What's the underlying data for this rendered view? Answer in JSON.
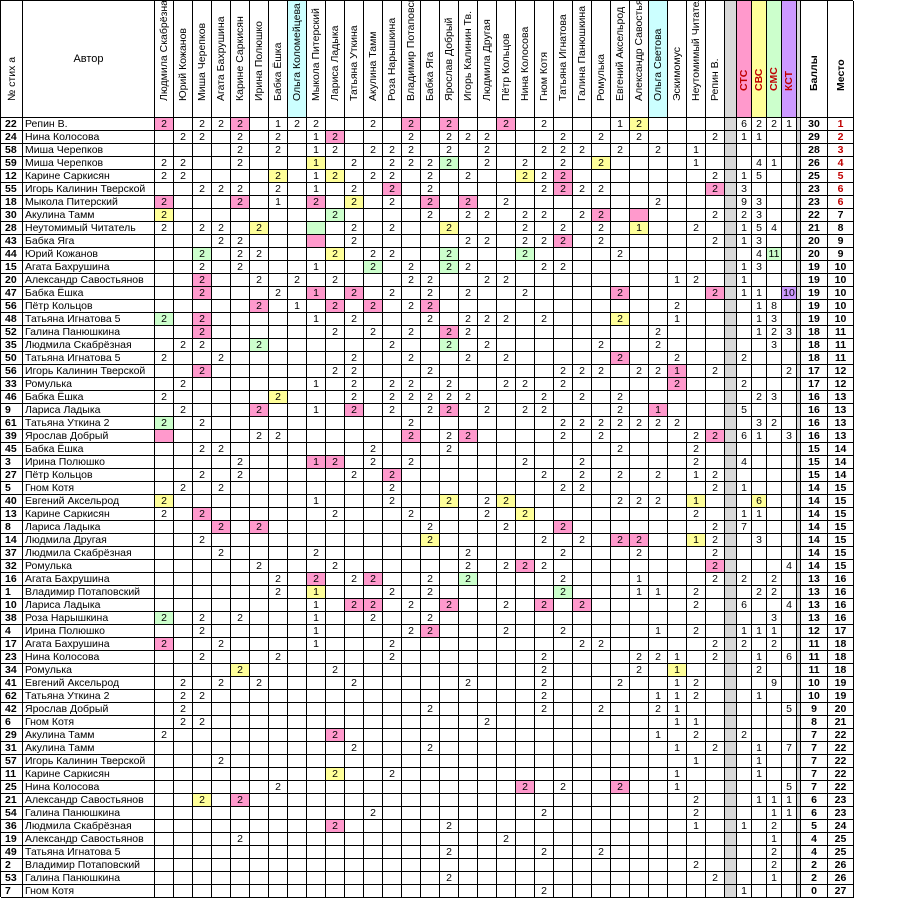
{
  "headers": {
    "num": "№ стих а",
    "author": "Автор",
    "voters": [
      "Людмила Скабрёзная",
      "Юрий Кожанов",
      "Миша Черепков",
      "Агата Бахрушина",
      "Карине Саркисян",
      "Ирина Полюшко",
      "Бабка Ёшка",
      "Ольга Коломейцева В",
      "Мыкола Питерский",
      "Лариса Ладыка",
      "Татьяна Уткина",
      "Акулина Тамм",
      "Роза Нарышкина",
      "Владимир Потаповски",
      "Бабка Яга",
      "Ярослав Добрый",
      "Игорь Калинин Тв.",
      "Людмила Другая",
      "Пётр Кольцов",
      "Нина Колосова",
      "Гном Котя",
      "Татьяна Игнатова",
      "Галина Панюшкина",
      "Ромулька",
      "Евгений Аксельрод",
      "Александр Савостьяно",
      "Ольга Светова",
      "Эскимомус",
      "Неутомимый Читатель",
      "Репин В."
    ],
    "stats": [
      "СТС",
      "СВС",
      "СМС",
      "КСТ"
    ],
    "score": "Баллы",
    "place": "Место"
  },
  "colors": {
    "pink": "#ff99cc",
    "yellow": "#ffff99",
    "green": "#ccffcc",
    "purple": "#cc99ff",
    "cyan": "#ccffff",
    "stsHead": "#ff99cc",
    "svsHead": "#ffff99",
    "smsHead": "#ccffcc",
    "kstHead": "#cc99ff",
    "sep": "#d9d9d9"
  },
  "rows": [
    {
      "n": "22",
      "a": "Репин В.",
      "b": "30",
      "p": "1"
    },
    {
      "n": "24",
      "a": "Нина Колосова",
      "b": "29",
      "p": "2"
    },
    {
      "n": "58",
      "a": "Миша Черепков",
      "b": "28",
      "p": "3"
    },
    {
      "n": "59",
      "a": "Миша Черепков",
      "b": "26",
      "p": "4"
    },
    {
      "n": "12",
      "a": "Карине Саркисян",
      "b": "25",
      "p": "5"
    },
    {
      "n": "55",
      "a": "Игорь Калинин Тверской",
      "b": "23",
      "p": "6"
    },
    {
      "n": "18",
      "a": "Мыкола Питерский",
      "b": "23",
      "p": "6"
    },
    {
      "n": "30",
      "a": "Акулина Тамм",
      "b": "22",
      "p": "7"
    },
    {
      "n": "28",
      "a": "Неутомимый Читатель",
      "b": "21",
      "p": "8"
    },
    {
      "n": "43",
      "a": "Бабка Яга",
      "b": "20",
      "p": "9"
    },
    {
      "n": "44",
      "a": "Юрий Кожанов",
      "b": "20",
      "p": "9"
    },
    {
      "n": "15",
      "a": "Агата Бахрушина",
      "b": "19",
      "p": "10"
    },
    {
      "n": "20",
      "a": "Александр Савостьянов",
      "b": "19",
      "p": "10"
    },
    {
      "n": "47",
      "a": "Бабка Ёшка",
      "b": "19",
      "p": "10"
    },
    {
      "n": "56",
      "a": "Пётр Кольцов",
      "b": "19",
      "p": "10"
    },
    {
      "n": "48",
      "a": "Татьяна Игнатова 5",
      "b": "19",
      "p": "10"
    },
    {
      "n": "52",
      "a": "Галина Панюшкина",
      "b": "18",
      "p": "11"
    },
    {
      "n": "35",
      "a": "Людмила Скабрёзная",
      "b": "18",
      "p": "11"
    },
    {
      "n": "50",
      "a": "Татьяна Игнатова 5",
      "b": "18",
      "p": "11"
    },
    {
      "n": "56",
      "a": "Игорь Калинин Тверской",
      "b": "17",
      "p": "12"
    },
    {
      "n": "33",
      "a": "Ромулька",
      "b": "17",
      "p": "12"
    },
    {
      "n": "46",
      "a": "Бабка Ёшка",
      "b": "16",
      "p": "13"
    },
    {
      "n": "9",
      "a": "Лариса Ладыка",
      "b": "16",
      "p": "13"
    },
    {
      "n": "61",
      "a": "Татьяна Уткина 2",
      "b": "16",
      "p": "13"
    },
    {
      "n": "39",
      "a": "Ярослав Добрый",
      "b": "16",
      "p": "13"
    },
    {
      "n": "45",
      "a": "Бабка Ёшка",
      "b": "15",
      "p": "14"
    },
    {
      "n": "3",
      "a": "Ирина Полюшко",
      "b": "15",
      "p": "14"
    },
    {
      "n": "27",
      "a": "Пётр Кольцов",
      "b": "15",
      "p": "14"
    },
    {
      "n": "5",
      "a": "Гном Котя",
      "b": "14",
      "p": "15"
    },
    {
      "n": "40",
      "a": "Евгений Аксельрод",
      "b": "14",
      "p": "15"
    },
    {
      "n": "13",
      "a": "Карине Саркисян",
      "b": "14",
      "p": "15"
    },
    {
      "n": "8",
      "a": "Лариса Ладыка",
      "b": "14",
      "p": "15"
    },
    {
      "n": "14",
      "a": "Людмила Другая",
      "b": "14",
      "p": "15"
    },
    {
      "n": "37",
      "a": "Людмила Скабрёзная",
      "b": "14",
      "p": "15"
    },
    {
      "n": "32",
      "a": "Ромулька",
      "b": "14",
      "p": "15"
    },
    {
      "n": "16",
      "a": "Агата Бахрушина",
      "b": "13",
      "p": "16"
    },
    {
      "n": "1",
      "a": "Владимир Потаповский",
      "b": "13",
      "p": "16"
    },
    {
      "n": "10",
      "a": "Лариса Ладыка",
      "b": "13",
      "p": "16"
    },
    {
      "n": "38",
      "a": "Роза Нарышкина",
      "b": "13",
      "p": "16"
    },
    {
      "n": "4",
      "a": "Ирина Полюшко",
      "b": "12",
      "p": "17"
    },
    {
      "n": "17",
      "a": "Агата Бахрушина",
      "b": "11",
      "p": "18"
    },
    {
      "n": "23",
      "a": "Нина Колосова",
      "b": "11",
      "p": "18"
    },
    {
      "n": "34",
      "a": "Ромулька",
      "b": "11",
      "p": "18"
    },
    {
      "n": "41",
      "a": "Евгений Аксельрод",
      "b": "10",
      "p": "19"
    },
    {
      "n": "62",
      "a": "Татьяна Уткина 2",
      "b": "10",
      "p": "19"
    },
    {
      "n": "42",
      "a": "Ярослав Добрый",
      "b": "9",
      "p": "20"
    },
    {
      "n": "6",
      "a": "Гном Котя",
      "b": "8",
      "p": "21"
    },
    {
      "n": "29",
      "a": "Акулина Тамм",
      "b": "7",
      "p": "22"
    },
    {
      "n": "31",
      "a": "Акулина Тамм",
      "b": "7",
      "p": "22"
    },
    {
      "n": "57",
      "a": "Игорь Калинин Тверской",
      "b": "7",
      "p": "22"
    },
    {
      "n": "11",
      "a": "Карине Саркисян",
      "b": "7",
      "p": "22"
    },
    {
      "n": "25",
      "a": "Нина Колосова",
      "b": "7",
      "p": "22"
    },
    {
      "n": "21",
      "a": "Александр Савостьянов",
      "b": "6",
      "p": "23"
    },
    {
      "n": "54",
      "a": "Галина Панюшкина",
      "b": "6",
      "p": "23"
    },
    {
      "n": "36",
      "a": "Людмила Скабрёзная",
      "b": "5",
      "p": "24"
    },
    {
      "n": "19",
      "a": "Александр Савостьянов",
      "b": "4",
      "p": "25"
    },
    {
      "n": "49",
      "a": "Татьяна Игнатова 5",
      "b": "4",
      "p": "25"
    },
    {
      "n": "2",
      "a": "Владимир Потаповский",
      "b": "2",
      "p": "26"
    },
    {
      "n": "53",
      "a": "Галина Панюшкина",
      "b": "2",
      "p": "26"
    },
    {
      "n": "7",
      "a": "Гном Котя",
      "b": "0",
      "p": "27"
    }
  ],
  "votes": [
    "2p2 - 2 2 2p - 1 2 2 - - 2 - 2p2 - 2p - - 2p - 2 - - - 1 2y",
    "- 2 2 - 2 - 2 - 1 2p2 - - - 2 - 2 2 2 - - - 2 - 2 - 2 - - - 2",
    "- - - - 2 - 2 - 1 2 - 2 2 2 - 2 - 2 - - 2 2 2 - 2 - 2 - 1 -",
    "2 2 - - 2 - - - 1y - 2 - 2 2 2 2g - 2 - 2 - 2 - 2y - - - - 1 -",
    "2 2 - - - - 2y - 1 2y - 2 2 - 2 - 2 - - 2y 2 2p - - - - - - - 2",
    "- - 2 2 2 - 2 - 1 - 2 - 2p - 2 - - - - - 2 2p 2 2 - - - - - 2p",
    "2p2 - - - 2p2p - 1 - 2p - 2y2 - 2 - 2p2 - 2p - 2 - - - - - - - 2",
    "2y - - - - - - - - 2g - - - - 2 - 2 2 - 2 2 - 2 2p - p - - - 2",
    "2 - 2 2 - 2y - - g - 2 - 2 - - 2y2 - - - 2 - 2 - 2 - 1y - - 2",
    "- - - 2 2 - - - p - 2 - - - - - 2 2 - 2 2 2p - 2 - - - - - 2",
    "- - 2g - 2 2 - - - 2y - 2 2 - - 2g - - - 2g2 - - - - 2 - - - -",
    "- - 2 - 2 - - - 1 - - 2g - 2 - 2g2 2 - - - 2 2 - - - - - - -",
    "- - 2p - - 2 - 2 - 2 - - - 2 2 - - 2 2 - - - - - - - - 1 2 -",
    "- - 2p - - - 2 - 1p - 2p - 2 - 2 - 2 - - 2 - - - - 2p - - - - 2p",
    "- - - - - 2p2 - 1 - 2p - 2p2 - 2 2p - - - - - - - - - - - - 2",
    "2g - 2p - - - - - 1 - 2 - - - 2 - 2 2 2 - 2 - - - 2y - - 1 - -",
    "- - 2p - - - - - - 2 - 2 - 2 - 2p2 2 - - - - - - - - - 2 - - -",
    "- 2 2 - - 2g2 - - - - - - 2 - - 2g - 2 - - - - - 2 - - 2 - - -",
    "2 - - 2 - - - - - - 2 - - 2 - - 2 - 2 - - - - - 2p2p - - 2 -",
    "- - 2p - - - - - - 2 2 - - - 2 - - - - - - 2 2 2 - 2 2 1p - 2",
    "- 2 - - - - - - 1 - 2 - 2 2 - 2 - - 2 2 - 2 - - - - - 2p - -",
    "2 - - - - - 2y - - - 2 - 2 2 2 2 2 - - - 2 - 2 - 2 - - - - -",
    "- 2 - - - 2p - - 1 - 2p - 2 - 2 2p - 2 - 2 2 - - - 2 - 1p - -",
    "2g - 2 - - - - - - - - - - 2 - - - - - - - 2 2 2 2 2 2 2 - -",
    "p - - - - 2 2 - - - - - - 2p - 2 2p - - - - 2 - 2 - - - - 2 2p",
    "- - 2 2 - - - - - - - 2 - - - 2 - - - - - - - - 2 - - - 2 -",
    "- - - - 2 - - - 1p2 2p - 2 - 2 - - - - - 2 - - 2 - - - - - 2",
    "- - 2 - 2 - - - - - 2 - 2p - - - - - - - 2 - 2 - 2 - 2 - 1 2",
    "- 2 - 2 - - - - - - - - 2 - - - - - - - - 2 2 - - - - - - 2",
    "2y - - - - - - - 1 - - - 2 - - 2y - 2 2y - - - - - 2 2 2 - 1y2 -",
    "2 - 2p - - - - - - 2 - - - 2 - - - 2 - 2y - - - - - - - - 2 -",
    "- - - 2p - 2p2 - - - - - - - - 2 - - - 2 - - 2p - - - - - - - 2",
    "- - 2 - - - - - - - - - - - 2y - - - - - 2 - 2 - 2p 2p - - 1y 2",
    "- - - 2 - - - - 2 - - - - - - - 2 - - - - 2 - - - 2 - - - 2",
    "- - - - - 2 - - - 2 - - - - - - 2 - 2 2p 2 - - - - - - - - 2p",
    "- - - - - - 2 - 2p - 2 2p - - 2 - 2g - - - - 2 - - - 1 - - - 2",
    "- - - - - - 2 - 1y - - - 2 - 2 - - - - - - 2g - - - 1 1 - 2 -",
    "- - - - - - - - 1 - 2p 2p - 2 - 2p - - 2 - 2p - 2p - - - - - 2 -",
    "2g - 2 - 2 - - - 1 - - 2 - - 2 - - - - - - - - - - - - - - -",
    "- - 2 - - - - - 1 - - - - 2 2p - - - 2 - - 2 - - - - 1 - 2 -",
    "2p - - 2 - - - - 1 - - - 2 - - - - - - - - - 2 2 - - - - - 2 -",
    "- - 2 - - - 2 - - - - - 2 - - - - - - - 2 - - - - 2 2 1 - 2 -",
    "- - - - 2y - - - - 2 - - - - - - - - - - 2 - - - - 2 - 1y2 - -",
    "- 2 - 2 - 2 - - - - 2 - - - - - 2 - - - 2 - - - 2 - - 1 2 - -",
    "- 2 2 - - - - - - - - - - - - - - - - - 2 - - - - - 1 1 2 -",
    "- 2 - - - - - - - - - - - - 2 - - - - - 2 - - 2 - - 2 1 - -",
    "- 2 2 - - - - - - - - - - - - - - 2 - - - - - - - - - 1 1 - -",
    "2 - - - - - - - - 2p2p - - - - - - - - - - - - - - - - 1 - 2 -",
    "- - - - - - - - - - 2 - - - 2 - - - - - - - - - - - - 1 - 2 -",
    "- - - 2 - - - - - - - - - - - - - - - - - - - - - - - - 1 - 2 -",
    "- - - - - - - - - 2y - - 2 - - - - - - - - - - - - - - 1 - - -",
    "- - - - - - 2 - - - - - - - - - - - - 2p - 2 - - 2p - - 1 - - -",
    "- - 2y - 2p - - - - - - - - - - - - - - - - - - - - - - - 2 - -",
    "- - - - - - - - - - - 2 - - - - - - - - 2 - - - - - - - 2 - -",
    "- - - - - - - - - 2p - - - - - 2 - - - - - - - - - - - - 1 - 2 -",
    "- - - - 2 - - - - - - - - - - - - - 2 - - - - - - - - - - - -",
    "- - - - - - - - - - - - - - - 2 - - - - 2 - - 2 - - - - - -",
    "- - - - - - - - - - - - - - - - - - - - - - - - - - - - 2 - -",
    "- - - - - - - - - - - - - - - 2 - - - - - - - - - - - - - 2 - -",
    "- - - - - - - - - - - - - - - - - - - - 2 - - - - - - - - -",
    "- - - - - - - - - - - - - - - - - - - - - - - - - - - - - -"
  ],
  "stats": [
    [
      "6",
      "2",
      "2",
      "1"
    ],
    [
      "1",
      "1",
      "",
      ""
    ],
    [
      "",
      "",
      "",
      ""
    ],
    [
      "",
      "4",
      "1",
      ""
    ],
    [
      "1",
      "5",
      "",
      ""
    ],
    [
      "3",
      "",
      "",
      ""
    ],
    [
      "9",
      "3",
      "",
      ""
    ],
    [
      "2",
      "3",
      "",
      ""
    ],
    [
      "1",
      "5",
      "4",
      ""
    ],
    [
      "1",
      "3",
      "",
      ""
    ],
    [
      "",
      "4",
      "11",
      ""
    ],
    [
      "1",
      "3",
      "",
      ""
    ],
    [
      "1",
      "",
      "",
      ""
    ],
    [
      "1",
      "1",
      "",
      "10"
    ],
    [
      "",
      "1",
      "8",
      ""
    ],
    [
      "",
      "1",
      "3",
      ""
    ],
    [
      "",
      "1",
      "2",
      "3"
    ],
    [
      "",
      "",
      "3",
      ""
    ],
    [
      "2",
      "",
      "",
      ""
    ],
    [
      "",
      "",
      "",
      "2"
    ],
    [
      "2",
      "",
      "",
      ""
    ],
    [
      "",
      "2",
      "3",
      ""
    ],
    [
      "5",
      "",
      "",
      ""
    ],
    [
      "",
      "3",
      "2",
      ""
    ],
    [
      "6",
      "1",
      "",
      "3"
    ],
    [
      "",
      "",
      "",
      ""
    ],
    [
      "4",
      "",
      "",
      ""
    ],
    [
      "",
      "",
      "",
      ""
    ],
    [
      "1",
      "",
      "",
      ""
    ],
    [
      "",
      "6",
      "",
      ""
    ],
    [
      "1",
      "1",
      "",
      ""
    ],
    [
      "7",
      "",
      "",
      ""
    ],
    [
      "",
      "3",
      "",
      ""
    ],
    [
      "",
      "",
      "",
      ""
    ],
    [
      "",
      "",
      "",
      "4"
    ],
    [
      "2",
      "",
      "2",
      ""
    ],
    [
      "",
      "2",
      "2",
      ""
    ],
    [
      "6",
      "",
      "",
      "4"
    ],
    [
      "",
      "",
      "3",
      ""
    ],
    [
      "1",
      "1",
      "1",
      ""
    ],
    [
      "2",
      "",
      "2",
      ""
    ],
    [
      "",
      "1",
      "",
      "6"
    ],
    [
      "",
      "2",
      "",
      ""
    ],
    [
      "",
      "",
      "9",
      ""
    ],
    [
      "",
      "1",
      "",
      ""
    ],
    [
      "",
      "",
      "",
      "5"
    ],
    [
      "",
      "",
      "",
      ""
    ],
    [
      "2",
      "",
      "",
      ""
    ],
    [
      "",
      "1",
      "",
      "7"
    ],
    [
      "",
      "1",
      "",
      ""
    ],
    [
      "",
      "1",
      "",
      ""
    ],
    [
      "",
      "",
      "",
      "5"
    ],
    [
      "",
      "1",
      "1",
      "1"
    ],
    [
      "",
      "",
      "1",
      "1"
    ],
    [
      "1",
      "",
      "2",
      ""
    ],
    [
      "",
      "",
      "1",
      ""
    ],
    [
      "",
      "",
      "2",
      ""
    ],
    [
      "",
      "",
      "2",
      ""
    ],
    [
      "",
      "",
      "1",
      ""
    ],
    [
      "1",
      "",
      "",
      ""
    ]
  ]
}
